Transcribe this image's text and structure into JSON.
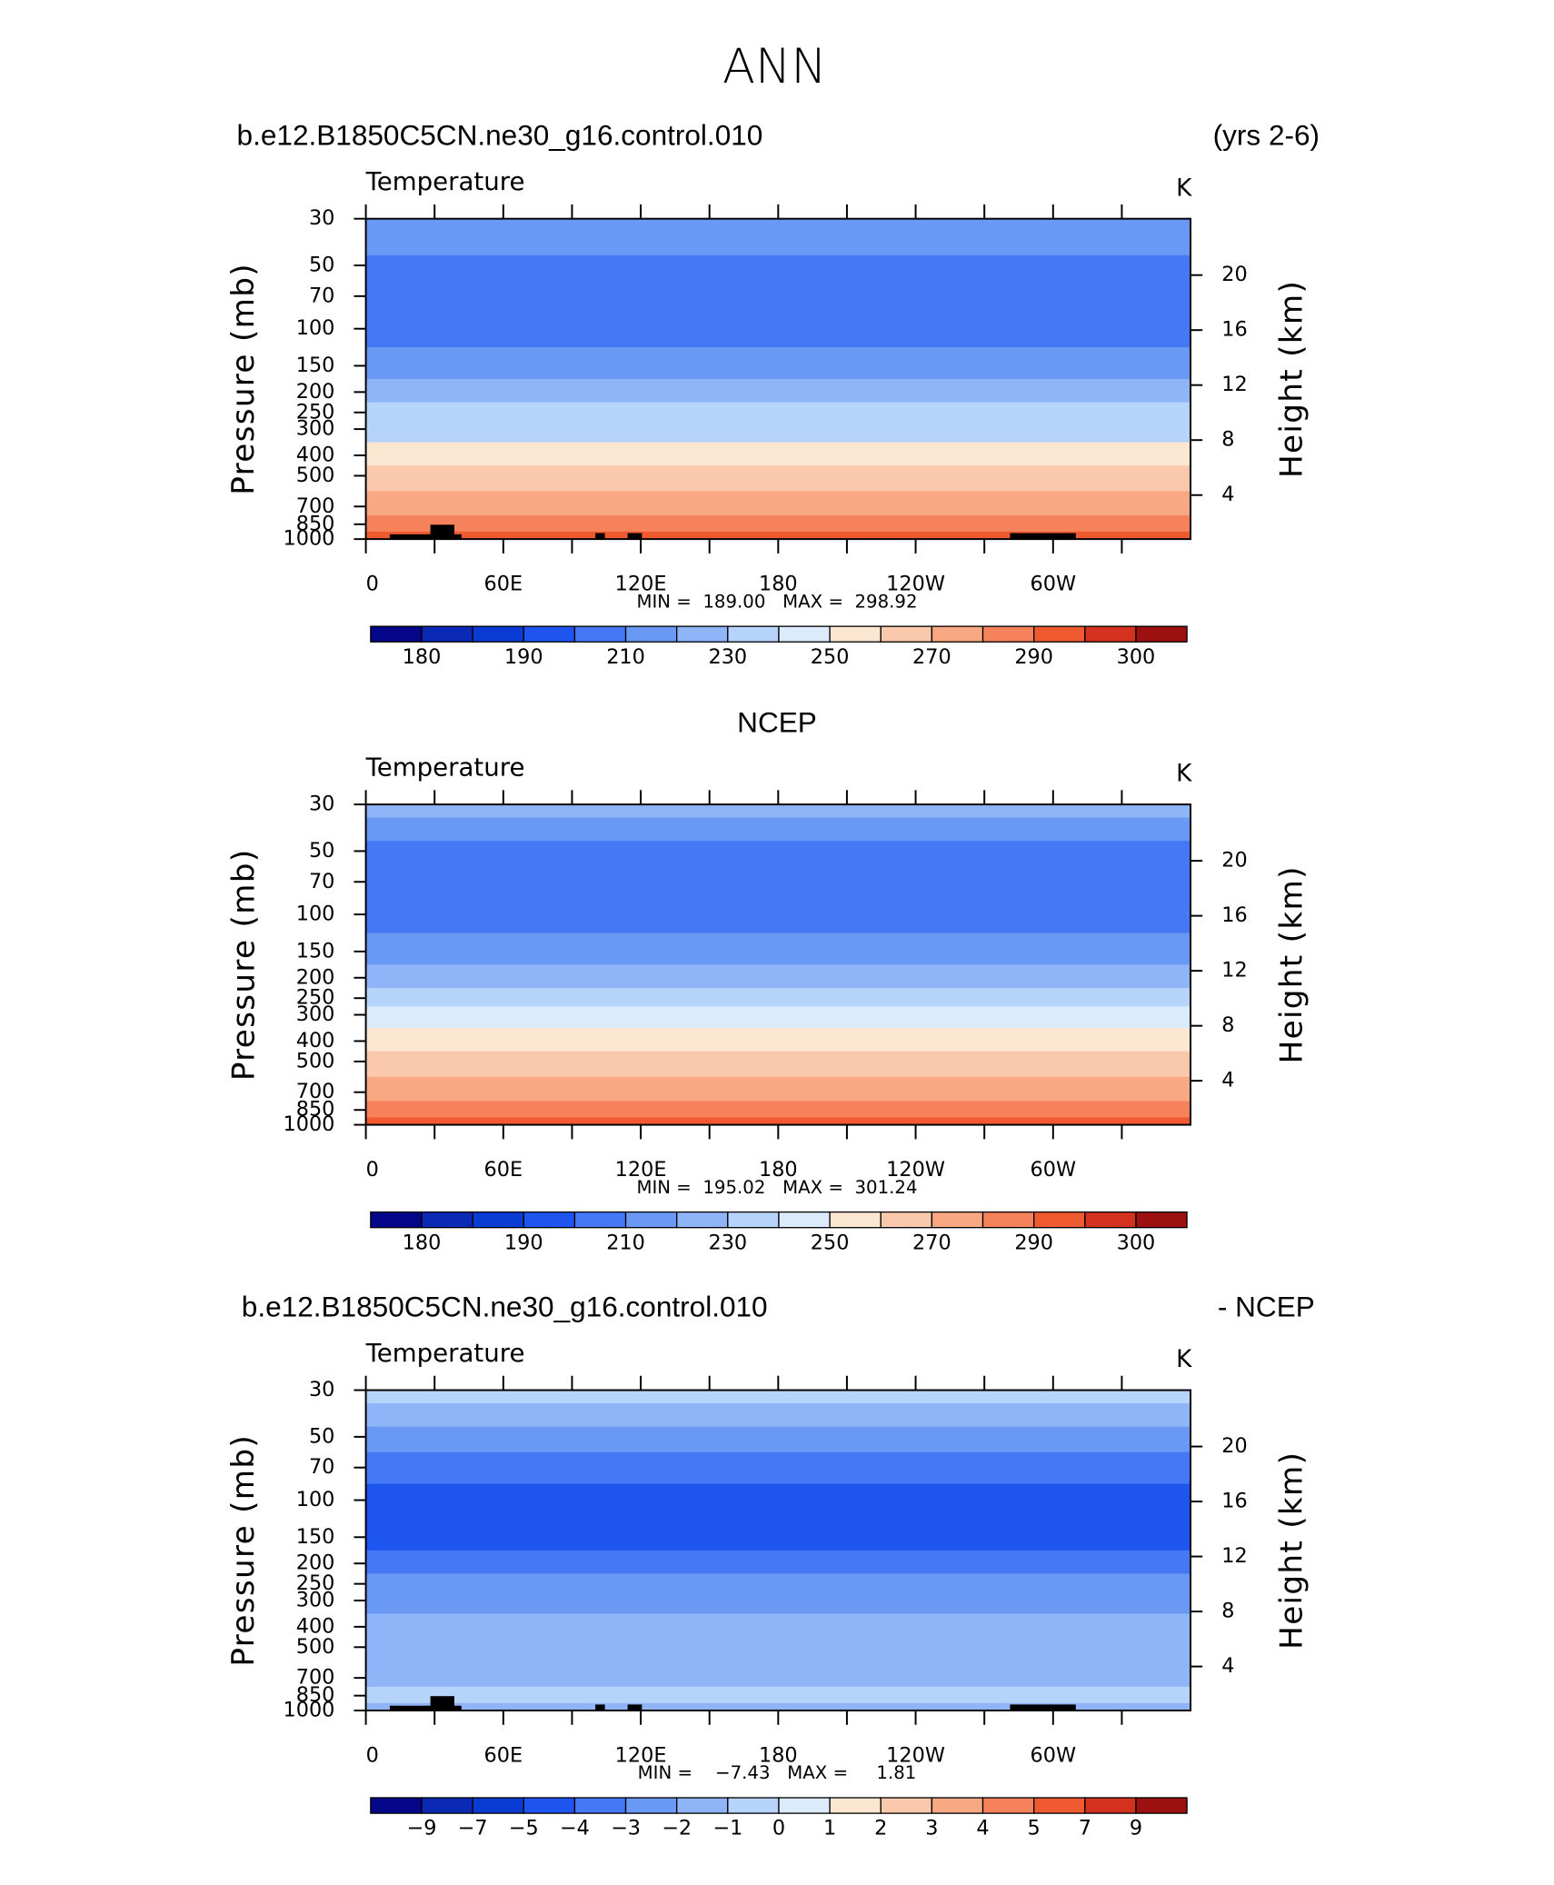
{
  "title": "ANN",
  "chart_data": [
    {
      "type": "contour",
      "title_left": "b.e12.B1850C5CN.ne30_g16.control.010",
      "title_right": "(yrs 2-6)",
      "variable": "Temperature",
      "units": "K",
      "ylabel": "Pressure  (mb)",
      "y2label": "Height  (km)",
      "ylim": [
        30,
        1000
      ],
      "ylog": true,
      "yticks": [
        30,
        50,
        70,
        100,
        150,
        200,
        250,
        300,
        400,
        500,
        700,
        850,
        1000
      ],
      "y2lim": [
        0.8,
        24.1
      ],
      "y2ticks": [
        4,
        8,
        12,
        16,
        20
      ],
      "xlim": [
        0,
        360
      ],
      "xticks": [
        0,
        {
          "value": 60,
          "label": "60E"
        },
        {
          "value": 120,
          "label": "120E"
        },
        180,
        {
          "value": 240,
          "label": "120W"
        },
        {
          "value": 300,
          "label": "60W"
        }
      ],
      "xminorticks": [
        30,
        90,
        150,
        210,
        270,
        330
      ],
      "stats": "MIN =  189.00   MAX =  298.92",
      "terrain_mask": true,
      "profile": {
        "pressure": [
          30,
          40,
          50,
          70,
          100,
          150,
          200,
          250,
          300,
          400,
          500,
          700,
          850,
          1000
        ],
        "values": [
          215,
          212,
          207,
          203,
          202,
          212,
          222,
          230,
          238,
          252,
          262,
          276,
          284,
          292
        ]
      },
      "levels": [
        180,
        185,
        190,
        200,
        210,
        220,
        230,
        240,
        250,
        260,
        270,
        280,
        290,
        295,
        300
      ],
      "level_label_step": 2,
      "colors": [
        "#06068a",
        "#0a2ab6",
        "#0a3cd4",
        "#1e55f0",
        "#4478f5",
        "#6a98f5",
        "#8fb5f8",
        "#b6d3fa",
        "#dcebfb",
        "#fbe6d2",
        "#fac8aa",
        "#f8a882",
        "#f5825a",
        "#f05a30",
        "#d2321e",
        "#9c1010"
      ]
    },
    {
      "type": "contour",
      "title_center": "NCEP",
      "variable": "Temperature",
      "units": "K",
      "ylabel": "Pressure  (mb)",
      "y2label": "Height  (km)",
      "ylim": [
        30,
        1000
      ],
      "ylog": true,
      "yticks": [
        30,
        50,
        70,
        100,
        150,
        200,
        250,
        300,
        400,
        500,
        700,
        850,
        1000
      ],
      "y2lim": [
        0.8,
        24.1
      ],
      "y2ticks": [
        4,
        8,
        12,
        16,
        20
      ],
      "xlim": [
        0,
        360
      ],
      "xticks": [
        0,
        {
          "value": 60,
          "label": "60E"
        },
        {
          "value": 120,
          "label": "120E"
        },
        180,
        {
          "value": 240,
          "label": "120W"
        },
        {
          "value": 300,
          "label": "60W"
        }
      ],
      "xminorticks": [
        30,
        90,
        150,
        210,
        270,
        330
      ],
      "stats": "MIN =  195.02   MAX =  301.24",
      "terrain_mask": false,
      "profile": {
        "pressure": [
          30,
          40,
          50,
          70,
          100,
          150,
          200,
          250,
          300,
          400,
          500,
          700,
          850,
          1000
        ],
        "values": [
          222,
          211,
          206,
          203,
          203,
          212,
          222,
          232,
          242,
          253,
          263,
          277,
          286,
          293
        ]
      },
      "levels": [
        180,
        185,
        190,
        200,
        210,
        220,
        230,
        240,
        250,
        260,
        270,
        280,
        290,
        295,
        300
      ],
      "level_label_step": 2,
      "colors": [
        "#06068a",
        "#0a2ab6",
        "#0a3cd4",
        "#1e55f0",
        "#4478f5",
        "#6a98f5",
        "#8fb5f8",
        "#b6d3fa",
        "#dcebfb",
        "#fbe6d2",
        "#fac8aa",
        "#f8a882",
        "#f5825a",
        "#f05a30",
        "#d2321e",
        "#9c1010"
      ]
    },
    {
      "type": "contour",
      "title_left": "b.e12.B1850C5CN.ne30_g16.control.010",
      "title_right": "- NCEP",
      "variable": "Temperature",
      "units": "K",
      "ylabel": "Pressure  (mb)",
      "y2label": "Height  (km)",
      "ylim": [
        30,
        1000
      ],
      "ylog": true,
      "yticks": [
        30,
        50,
        70,
        100,
        150,
        200,
        250,
        300,
        400,
        500,
        700,
        850,
        1000
      ],
      "y2lim": [
        0.8,
        24.1
      ],
      "y2ticks": [
        4,
        8,
        12,
        16,
        20
      ],
      "xlim": [
        0,
        360
      ],
      "xticks": [
        0,
        {
          "value": 60,
          "label": "60E"
        },
        {
          "value": 120,
          "label": "120E"
        },
        180,
        {
          "value": 240,
          "label": "120W"
        },
        {
          "value": 300,
          "label": "60W"
        }
      ],
      "xminorticks": [
        30,
        90,
        150,
        210,
        270,
        330
      ],
      "stats": "MIN =    −7.43   MAX =     1.81",
      "terrain_mask": true,
      "profile": {
        "pressure": [
          30,
          40,
          50,
          70,
          100,
          150,
          200,
          250,
          300,
          400,
          500,
          700,
          850,
          1000
        ],
        "values": [
          -0.5,
          -1.5,
          -2.5,
          -3.5,
          -4.5,
          -4.5,
          -3.5,
          -3,
          -2.5,
          -2,
          -1.5,
          -1.5,
          -0.5,
          -1.5
        ]
      },
      "levels": [
        {
          "value": -9,
          "label": "−9"
        },
        {
          "value": -7,
          "label": "−7"
        },
        {
          "value": -5,
          "label": "−5"
        },
        {
          "value": -4,
          "label": "−4"
        },
        {
          "value": -3,
          "label": "−3"
        },
        {
          "value": -2,
          "label": "−2"
        },
        {
          "value": -1,
          "label": "−1"
        },
        0,
        1,
        2,
        3,
        4,
        5,
        7,
        9
      ],
      "level_label_step": 1,
      "colors": [
        "#06068a",
        "#0a2ab6",
        "#0a3cd4",
        "#1e55f0",
        "#4478f5",
        "#6a98f5",
        "#8fb5f8",
        "#b6d3fa",
        "#dcebfb",
        "#fbe6d2",
        "#fac8aa",
        "#f8a882",
        "#f5825a",
        "#f05a30",
        "#d2321e",
        "#9c1010"
      ]
    }
  ]
}
